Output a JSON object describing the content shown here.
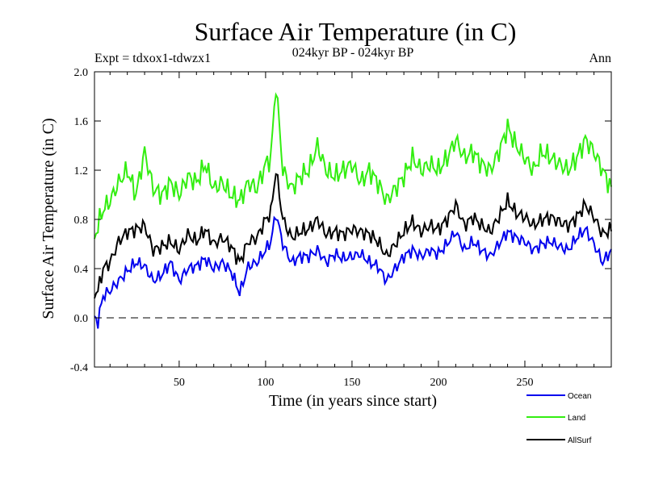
{
  "chart_data": {
    "type": "line",
    "title": "Surface Air Temperature (in C)",
    "subtitle_left": "Expt = tdxox1-tdwzx1",
    "subtitle_center": "024kyr BP - 024kyr BP",
    "subtitle_right": "Ann",
    "xlabel": "Time (in years since start)",
    "ylabel": "Surface Air Temperature (in C)",
    "xlim": [
      1,
      300
    ],
    "ylim": [
      -0.4,
      2.0
    ],
    "xticks": [
      50,
      100,
      150,
      200,
      250
    ],
    "xtick_labels": [
      "50",
      "100",
      "150",
      "200",
      "250"
    ],
    "yticks": [
      -0.4,
      0.0,
      0.4,
      0.8,
      1.2,
      1.6,
      2.0
    ],
    "ytick_labels": [
      "-0.4",
      "0.0",
      "0.4",
      "0.8",
      "1.2",
      "1.6",
      "2.0"
    ],
    "zero_line": 0.0,
    "legend_position": "bottom-right",
    "series": [
      {
        "name": "Ocean",
        "color": "#0000ee",
        "anchors_x": [
          1,
          3,
          6,
          10,
          15,
          20,
          25,
          30,
          35,
          40,
          45,
          50,
          55,
          60,
          65,
          70,
          75,
          80,
          85,
          90,
          95,
          100,
          103,
          106,
          110,
          115,
          120,
          125,
          130,
          135,
          140,
          145,
          150,
          155,
          160,
          165,
          170,
          175,
          180,
          185,
          190,
          195,
          200,
          205,
          210,
          215,
          220,
          225,
          230,
          235,
          240,
          245,
          250,
          255,
          260,
          265,
          270,
          275,
          280,
          285,
          290,
          295,
          300
        ],
        "anchors_y": [
          0.0,
          -0.03,
          0.18,
          0.22,
          0.3,
          0.38,
          0.45,
          0.42,
          0.3,
          0.35,
          0.45,
          0.3,
          0.4,
          0.42,
          0.48,
          0.4,
          0.45,
          0.38,
          0.2,
          0.42,
          0.45,
          0.55,
          0.62,
          0.85,
          0.6,
          0.45,
          0.5,
          0.5,
          0.55,
          0.45,
          0.52,
          0.48,
          0.5,
          0.52,
          0.45,
          0.42,
          0.3,
          0.4,
          0.5,
          0.55,
          0.5,
          0.55,
          0.52,
          0.6,
          0.7,
          0.55,
          0.62,
          0.55,
          0.5,
          0.6,
          0.7,
          0.65,
          0.62,
          0.55,
          0.6,
          0.62,
          0.58,
          0.55,
          0.65,
          0.72,
          0.6,
          0.45,
          0.55
        ]
      },
      {
        "name": "Land",
        "color": "#33ee11",
        "anchors_x": [
          1,
          3,
          6,
          10,
          15,
          20,
          25,
          30,
          35,
          40,
          45,
          50,
          55,
          60,
          65,
          70,
          75,
          80,
          85,
          90,
          95,
          100,
          103,
          106,
          110,
          115,
          120,
          125,
          130,
          135,
          140,
          145,
          150,
          155,
          160,
          165,
          170,
          175,
          180,
          185,
          190,
          195,
          200,
          205,
          210,
          215,
          220,
          225,
          230,
          235,
          240,
          245,
          250,
          255,
          260,
          265,
          270,
          275,
          280,
          285,
          290,
          295,
          300
        ],
        "anchors_y": [
          0.65,
          0.75,
          0.88,
          0.95,
          1.1,
          1.2,
          1.0,
          1.35,
          1.05,
          1.0,
          1.1,
          1.0,
          1.15,
          1.1,
          1.25,
          1.05,
          1.1,
          1.0,
          0.95,
          1.1,
          1.05,
          1.25,
          1.3,
          1.9,
          1.2,
          1.05,
          1.15,
          1.2,
          1.4,
          1.2,
          1.15,
          1.2,
          1.25,
          1.1,
          1.2,
          1.1,
          0.95,
          1.05,
          1.15,
          1.3,
          1.2,
          1.25,
          1.2,
          1.3,
          1.45,
          1.3,
          1.35,
          1.25,
          1.2,
          1.35,
          1.55,
          1.4,
          1.3,
          1.2,
          1.35,
          1.3,
          1.25,
          1.2,
          1.3,
          1.45,
          1.35,
          1.2,
          1.05
        ]
      },
      {
        "name": "AllSurf",
        "color": "#000000",
        "anchors_x": [
          1,
          3,
          6,
          10,
          15,
          20,
          25,
          30,
          35,
          40,
          45,
          50,
          55,
          60,
          65,
          70,
          75,
          80,
          85,
          90,
          95,
          100,
          103,
          106,
          110,
          115,
          120,
          125,
          130,
          135,
          140,
          145,
          150,
          155,
          160,
          165,
          170,
          175,
          180,
          185,
          190,
          195,
          200,
          205,
          210,
          215,
          220,
          225,
          230,
          235,
          240,
          245,
          250,
          255,
          260,
          265,
          270,
          275,
          280,
          285,
          290,
          295,
          300
        ],
        "anchors_y": [
          0.2,
          0.22,
          0.4,
          0.45,
          0.62,
          0.7,
          0.72,
          0.75,
          0.55,
          0.58,
          0.62,
          0.55,
          0.68,
          0.62,
          0.72,
          0.6,
          0.65,
          0.58,
          0.45,
          0.62,
          0.65,
          0.8,
          0.85,
          1.2,
          0.8,
          0.65,
          0.7,
          0.72,
          0.8,
          0.68,
          0.7,
          0.68,
          0.72,
          0.7,
          0.68,
          0.62,
          0.5,
          0.6,
          0.7,
          0.78,
          0.7,
          0.75,
          0.72,
          0.8,
          0.92,
          0.75,
          0.82,
          0.75,
          0.7,
          0.82,
          0.95,
          0.85,
          0.82,
          0.75,
          0.8,
          0.82,
          0.78,
          0.75,
          0.82,
          0.92,
          0.82,
          0.68,
          0.72
        ]
      }
    ]
  }
}
